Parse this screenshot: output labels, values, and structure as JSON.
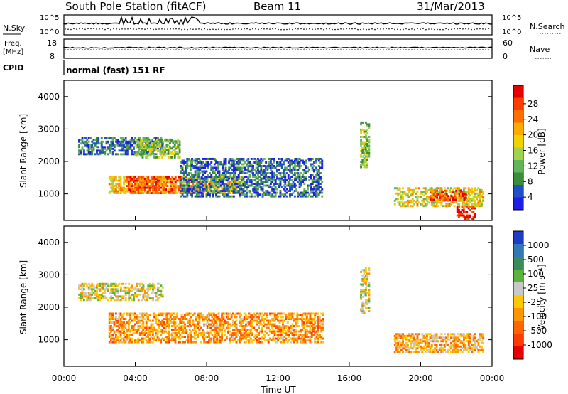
{
  "header": {
    "station": "South Pole Station (fitACF)",
    "beam": "Beam 11",
    "date": "31/Mar/2013"
  },
  "strip_noise": {
    "left_label": "N.Sky",
    "right_label": "N.Search",
    "ticks": [
      "10^5",
      "10^0"
    ]
  },
  "strip_freq": {
    "left_label_1": "Freq.",
    "left_label_2": "[MHz]",
    "left_ticks": [
      "18",
      "8"
    ],
    "right_label": "Nave",
    "right_ticks": [
      "60",
      "0"
    ]
  },
  "strip_cpid": {
    "label": "CPID",
    "text": "normal (fast) 151 RF"
  },
  "xaxis": {
    "label": "Time UT",
    "ticks": [
      "00:00",
      "04:00",
      "08:00",
      "12:00",
      "16:00",
      "20:00",
      "00:00"
    ]
  },
  "panel_power": {
    "ylabel": "Slant Range [km]",
    "yticks": [
      "4000",
      "3000",
      "2000",
      "1000"
    ],
    "colorbar_label": "Power [dB]",
    "colorbar_ticks": [
      "28",
      "24",
      "20",
      "16",
      "12",
      "8",
      "4"
    ],
    "colors": [
      "#1e1ee6",
      "#2050c8",
      "#3c8c3c",
      "#64b45a",
      "#a0d250",
      "#f0d200",
      "#ffaa00",
      "#ff6e00",
      "#ff3c00",
      "#e60000"
    ]
  },
  "panel_velocity": {
    "ylabel": "Slant Range [km]",
    "yticks": [
      "4000",
      "3000",
      "2000",
      "1000"
    ],
    "colorbar_label": "Velocity [m s⁻¹]",
    "colorbar_ticks": [
      "1000",
      "500",
      "100",
      "25",
      "-25",
      "-100",
      "-500",
      "-1000"
    ],
    "colors": [
      "#1e3cc8",
      "#3278b4",
      "#3c8c5a",
      "#5ab43c",
      "#c8c8c8",
      "#ffc800",
      "#ff9600",
      "#ff6400",
      "#ff3c00",
      "#e60000"
    ]
  },
  "chart_data": [
    {
      "type": "heatmap",
      "title": "Power",
      "xlabel": "Time UT",
      "ylabel": "Slant Range [km]",
      "x_range": [
        "00:00",
        "24:00"
      ],
      "ylim": [
        180,
        4500
      ],
      "colorbar": {
        "label": "Power [dB]",
        "range": [
          0,
          30
        ],
        "ticks": [
          4,
          8,
          12,
          16,
          20,
          24,
          28
        ]
      },
      "echo_regions": [
        {
          "time": [
            0.8,
            5.5
          ],
          "range_km": [
            2200,
            2700
          ],
          "value_db": 6
        },
        {
          "time": [
            4.0,
            6.5
          ],
          "range_km": [
            2100,
            2700
          ],
          "value_db": 12
        },
        {
          "time": [
            2.5,
            10.0
          ],
          "range_km": [
            1000,
            1500
          ],
          "value_db": 18
        },
        {
          "time": [
            3.5,
            6.5
          ],
          "range_km": [
            1000,
            1500
          ],
          "value_db": 24
        },
        {
          "time": [
            6.5,
            14.5
          ],
          "range_km": [
            900,
            2100
          ],
          "value_db": 6
        },
        {
          "time": [
            16.6,
            17.1
          ],
          "range_km": [
            1800,
            3200
          ],
          "value_db": 12
        },
        {
          "time": [
            18.5,
            23.5
          ],
          "range_km": [
            600,
            1200
          ],
          "value_db": 16
        },
        {
          "time": [
            20.5,
            22.5
          ],
          "range_km": [
            800,
            1100
          ],
          "value_db": 24
        },
        {
          "time": [
            22.0,
            23.0
          ],
          "range_km": [
            200,
            600
          ],
          "value_db": 28
        }
      ]
    },
    {
      "type": "heatmap",
      "title": "Velocity",
      "xlabel": "Time UT",
      "ylabel": "Slant Range [km]",
      "x_range": [
        "00:00",
        "24:00"
      ],
      "ylim": [
        180,
        4500
      ],
      "colorbar": {
        "label": "Velocity [m s⁻¹]",
        "range": [
          -1000,
          1000
        ],
        "ticks": [
          1000,
          500,
          100,
          25,
          -25,
          -100,
          -500,
          -1000
        ]
      },
      "echo_regions": [
        {
          "time": [
            0.8,
            5.5
          ],
          "range_km": [
            2200,
            2700
          ],
          "value_ms": 0
        },
        {
          "time": [
            2.5,
            14.5
          ],
          "range_km": [
            900,
            1800
          ],
          "value_ms": -300
        },
        {
          "time": [
            16.6,
            17.1
          ],
          "range_km": [
            1800,
            3200
          ],
          "value_ms": 0
        },
        {
          "time": [
            18.5,
            23.5
          ],
          "range_km": [
            600,
            1200
          ],
          "value_ms": -200
        }
      ]
    }
  ]
}
